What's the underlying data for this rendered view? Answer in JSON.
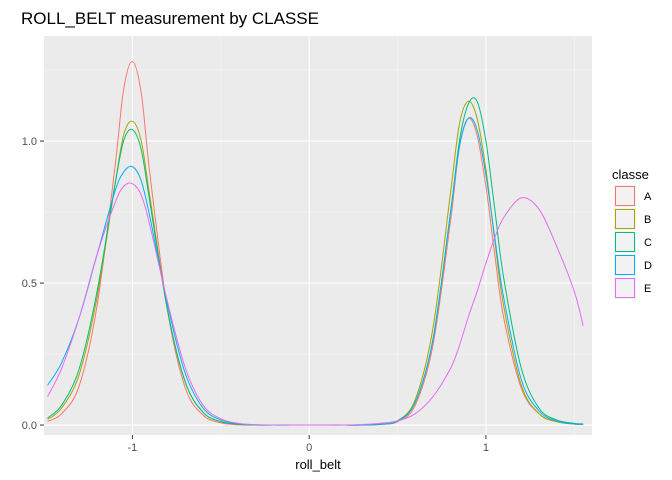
{
  "chart_data": {
    "type": "density",
    "title": "ROLL_BELT measurement by CLASSE",
    "xlabel": "roll_belt",
    "ylabel": "",
    "xlim": [
      -1.5,
      1.6
    ],
    "ylim": [
      -0.035,
      1.37
    ],
    "x_ticks": [
      -1,
      0,
      1
    ],
    "x_tick_labels": [
      "-1",
      "0",
      "1"
    ],
    "y_ticks": [
      0.0,
      0.5,
      1.0
    ],
    "y_tick_labels": [
      "0.0",
      "0.5",
      "1.0"
    ],
    "grid": true,
    "legend": {
      "title": "classe",
      "position": "right"
    },
    "series": [
      {
        "name": "A",
        "color": "#F8766D",
        "x": [
          -1.48,
          -1.4,
          -1.3,
          -1.2,
          -1.1,
          -1.05,
          -1.0,
          -0.95,
          -0.9,
          -0.8,
          -0.7,
          -0.6,
          -0.5,
          -0.4,
          -0.3,
          -0.2,
          -0.1,
          0.0,
          0.1,
          0.2,
          0.3,
          0.4,
          0.5,
          0.6,
          0.7,
          0.8,
          0.85,
          0.9,
          0.95,
          1.0,
          1.05,
          1.1,
          1.2,
          1.3,
          1.4,
          1.5,
          1.55
        ],
        "y": [
          0.013,
          0.04,
          0.14,
          0.42,
          0.9,
          1.18,
          1.28,
          1.17,
          0.88,
          0.4,
          0.13,
          0.035,
          0.008,
          0.001,
          0.0,
          0.0,
          0.0,
          0.0,
          0.0,
          0.0,
          0.0,
          0.002,
          0.012,
          0.07,
          0.28,
          0.72,
          0.98,
          1.08,
          1.02,
          0.84,
          0.6,
          0.38,
          0.13,
          0.04,
          0.012,
          0.003,
          0.002
        ]
      },
      {
        "name": "B",
        "color": "#A3A500",
        "x": [
          -1.48,
          -1.4,
          -1.3,
          -1.2,
          -1.1,
          -1.05,
          -1.0,
          -0.95,
          -0.9,
          -0.8,
          -0.7,
          -0.6,
          -0.5,
          -0.4,
          -0.3,
          -0.2,
          -0.1,
          0.0,
          0.1,
          0.2,
          0.3,
          0.4,
          0.5,
          0.6,
          0.7,
          0.8,
          0.85,
          0.9,
          0.95,
          1.0,
          1.05,
          1.1,
          1.2,
          1.3,
          1.4,
          1.5,
          1.55
        ],
        "y": [
          0.02,
          0.06,
          0.18,
          0.45,
          0.84,
          1.02,
          1.07,
          1.0,
          0.8,
          0.4,
          0.15,
          0.045,
          0.012,
          0.003,
          0.0,
          0.0,
          0.0,
          0.0,
          0.0,
          0.0,
          0.0,
          0.003,
          0.015,
          0.09,
          0.34,
          0.82,
          1.06,
          1.14,
          1.08,
          0.9,
          0.65,
          0.42,
          0.14,
          0.04,
          0.012,
          0.004,
          0.003
        ]
      },
      {
        "name": "C",
        "color": "#00BF7D",
        "x": [
          -1.48,
          -1.4,
          -1.3,
          -1.2,
          -1.1,
          -1.05,
          -1.0,
          -0.95,
          -0.9,
          -0.8,
          -0.7,
          -0.6,
          -0.5,
          -0.4,
          -0.3,
          -0.2,
          -0.1,
          0.0,
          0.1,
          0.2,
          0.3,
          0.4,
          0.5,
          0.6,
          0.7,
          0.8,
          0.85,
          0.9,
          0.95,
          1.0,
          1.05,
          1.1,
          1.2,
          1.3,
          1.4,
          1.5,
          1.55
        ],
        "y": [
          0.025,
          0.07,
          0.2,
          0.47,
          0.84,
          1.0,
          1.04,
          0.97,
          0.78,
          0.4,
          0.15,
          0.045,
          0.012,
          0.003,
          0.0,
          0.0,
          0.0,
          0.0,
          0.0,
          0.0,
          0.0,
          0.003,
          0.015,
          0.08,
          0.3,
          0.75,
          1.0,
          1.13,
          1.14,
          1.0,
          0.76,
          0.52,
          0.2,
          0.06,
          0.018,
          0.006,
          0.004
        ]
      },
      {
        "name": "D",
        "color": "#00B0F6",
        "x": [
          -1.48,
          -1.4,
          -1.3,
          -1.2,
          -1.1,
          -1.05,
          -1.0,
          -0.95,
          -0.9,
          -0.8,
          -0.7,
          -0.6,
          -0.5,
          -0.4,
          -0.3,
          -0.2,
          -0.1,
          0.0,
          0.1,
          0.2,
          0.3,
          0.4,
          0.5,
          0.6,
          0.7,
          0.8,
          0.85,
          0.9,
          0.95,
          1.0,
          1.05,
          1.1,
          1.2,
          1.3,
          1.4,
          1.5,
          1.55
        ],
        "y": [
          0.14,
          0.22,
          0.38,
          0.6,
          0.82,
          0.89,
          0.91,
          0.86,
          0.73,
          0.42,
          0.18,
          0.06,
          0.018,
          0.005,
          0.001,
          0.0,
          0.0,
          0.0,
          0.0,
          0.0,
          0.0,
          0.003,
          0.014,
          0.08,
          0.3,
          0.75,
          0.98,
          1.08,
          1.04,
          0.88,
          0.66,
          0.45,
          0.16,
          0.05,
          0.014,
          0.004,
          0.003
        ]
      },
      {
        "name": "E",
        "color": "#E76BF3",
        "x": [
          -1.48,
          -1.4,
          -1.3,
          -1.2,
          -1.1,
          -1.05,
          -1.0,
          -0.95,
          -0.9,
          -0.8,
          -0.7,
          -0.6,
          -0.5,
          -0.4,
          -0.3,
          -0.2,
          -0.1,
          0.0,
          0.1,
          0.2,
          0.3,
          0.4,
          0.5,
          0.6,
          0.7,
          0.8,
          0.85,
          0.9,
          0.95,
          1.0,
          1.05,
          1.1,
          1.2,
          1.3,
          1.4,
          1.5,
          1.55
        ],
        "y": [
          0.1,
          0.2,
          0.38,
          0.6,
          0.78,
          0.84,
          0.85,
          0.81,
          0.7,
          0.43,
          0.2,
          0.07,
          0.022,
          0.006,
          0.001,
          0.0,
          0.0,
          0.0,
          0.0,
          0.0,
          0.002,
          0.006,
          0.015,
          0.04,
          0.1,
          0.2,
          0.28,
          0.38,
          0.47,
          0.57,
          0.66,
          0.73,
          0.8,
          0.76,
          0.63,
          0.47,
          0.35
        ]
      }
    ]
  }
}
